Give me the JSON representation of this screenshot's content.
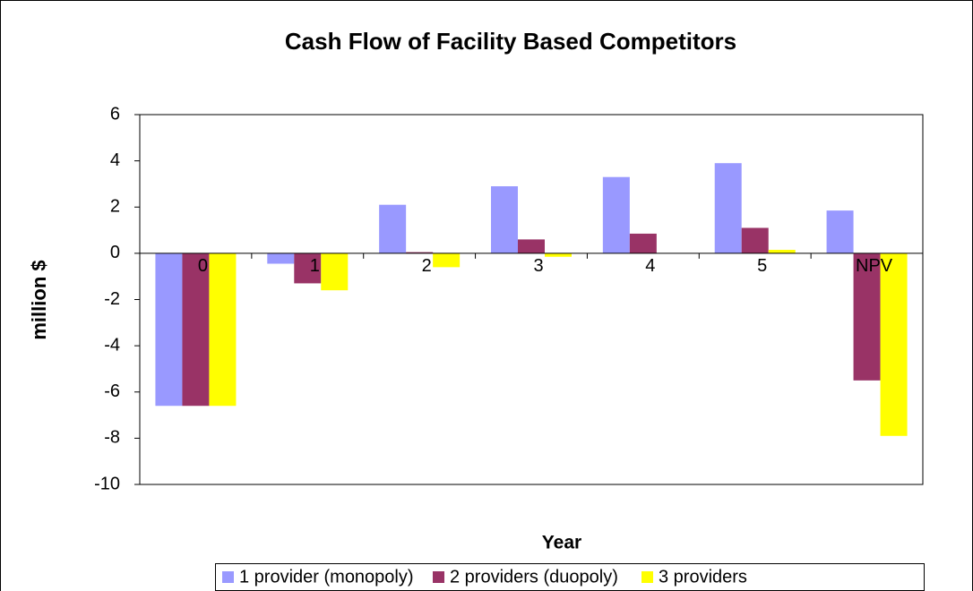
{
  "chart_data": {
    "type": "bar",
    "title": "Cash Flow of Facility Based Competitors",
    "xlabel": "Year",
    "ylabel": "million $",
    "categories": [
      "0",
      "1",
      "2",
      "3",
      "4",
      "5",
      "NPV"
    ],
    "series": [
      {
        "name": "1 provider (monopoly)",
        "color": "#9999ff",
        "values": [
          -6.6,
          -0.45,
          2.1,
          2.9,
          3.3,
          3.9,
          1.85
        ]
      },
      {
        "name": "2 providers (duopoly)",
        "color": "#993366",
        "values": [
          -6.6,
          -1.3,
          0.05,
          0.6,
          0.85,
          1.1,
          -5.5
        ]
      },
      {
        "name": "3 providers",
        "color": "#ffff00",
        "values": [
          -6.6,
          -1.6,
          -0.6,
          -0.15,
          0,
          0.15,
          -7.9
        ]
      }
    ],
    "ylim": [
      -10,
      6
    ],
    "yticks": [
      -10,
      -8,
      -6,
      -4,
      -2,
      0,
      2,
      4,
      6
    ]
  }
}
